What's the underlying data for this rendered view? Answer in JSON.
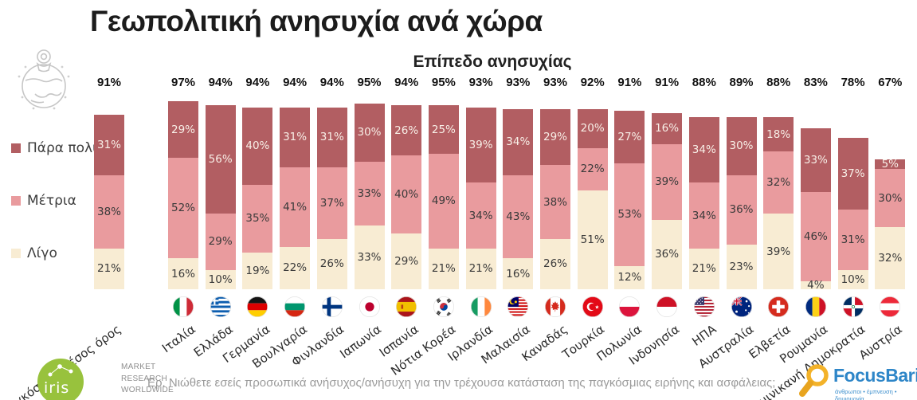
{
  "title": "Γεωπολιτική ανησυχία ανά χώρα",
  "subtitle": "Επίπεδο ανησυχίας",
  "colors": {
    "para_poly": "#b25e62",
    "metria": "#e99b9e",
    "ligo": "#f8ecd3",
    "label_on_dark": "#f8efe7",
    "label_on_light": "#3a3a3a"
  },
  "legend": [
    {
      "label": "Πάρα πολύ",
      "color": "#b25e62"
    },
    {
      "label": "Μέτρια",
      "color": "#e99b9e"
    },
    {
      "label": "Λίγο",
      "color": "#f8ecd3"
    }
  ],
  "chart_data": {
    "type": "bar",
    "stacked": true,
    "unit": "%",
    "series_names": [
      "Πάρα πολύ",
      "Μέτρια",
      "Λίγο"
    ],
    "bars": [
      {
        "country": "Παγκόσμιος μέσος όρος",
        "total": "91%",
        "para_poly": 31,
        "metria": 38,
        "ligo": 21,
        "flag": null
      },
      {
        "country": "Ιταλία",
        "total": "97%",
        "para_poly": 29,
        "metria": 52,
        "ligo": 16,
        "flag": "it"
      },
      {
        "country": "Ελλάδα",
        "total": "94%",
        "para_poly": 56,
        "metria": 29,
        "ligo": 10,
        "flag": "gr"
      },
      {
        "country": "Γερμανία",
        "total": "94%",
        "para_poly": 40,
        "metria": 35,
        "ligo": 19,
        "flag": "de"
      },
      {
        "country": "Βουλγαρία",
        "total": "94%",
        "para_poly": 31,
        "metria": 41,
        "ligo": 22,
        "flag": "bg"
      },
      {
        "country": "Φινλανδία",
        "total": "94%",
        "para_poly": 31,
        "metria": 37,
        "ligo": 26,
        "flag": "fi"
      },
      {
        "country": "Ιαπωνία",
        "total": "95%",
        "para_poly": 30,
        "metria": 33,
        "ligo": 33,
        "flag": "jp"
      },
      {
        "country": "Ισπανία",
        "total": "94%",
        "para_poly": 26,
        "metria": 40,
        "ligo": 29,
        "flag": "es"
      },
      {
        "country": "Νότια Κορέα",
        "total": "95%",
        "para_poly": 25,
        "metria": 49,
        "ligo": 21,
        "flag": "kr"
      },
      {
        "country": "Ιρλανδία",
        "total": "93%",
        "para_poly": 39,
        "metria": 34,
        "ligo": 21,
        "flag": "ie"
      },
      {
        "country": "Μαλαισία",
        "total": "93%",
        "para_poly": 34,
        "metria": 43,
        "ligo": 16,
        "flag": "my"
      },
      {
        "country": "Καναδάς",
        "total": "93%",
        "para_poly": 29,
        "metria": 38,
        "ligo": 26,
        "flag": "ca"
      },
      {
        "country": "Τουρκία",
        "total": "92%",
        "para_poly": 20,
        "metria": 22,
        "ligo": 51,
        "flag": "tr"
      },
      {
        "country": "Πολωνία",
        "total": "91%",
        "para_poly": 27,
        "metria": 53,
        "ligo": 12,
        "flag": "pl"
      },
      {
        "country": "Ινδονησία",
        "total": "91%",
        "para_poly": 16,
        "metria": 39,
        "ligo": 36,
        "flag": "id"
      },
      {
        "country": "ΗΠΑ",
        "total": "88%",
        "para_poly": 34,
        "metria": 34,
        "ligo": 21,
        "flag": "us"
      },
      {
        "country": "Αυστραλία",
        "total": "89%",
        "para_poly": 30,
        "metria": 36,
        "ligo": 23,
        "flag": "au"
      },
      {
        "country": "Ελβετία",
        "total": "88%",
        "para_poly": 18,
        "metria": 32,
        "ligo": 39,
        "flag": "ch"
      },
      {
        "country": "Ρουμανία",
        "total": "83%",
        "para_poly": 33,
        "metria": 46,
        "ligo": 4,
        "flag": "ro"
      },
      {
        "country": "Δομινικανή Δημοκρατία",
        "total": "78%",
        "para_poly": 37,
        "metria": 31,
        "ligo": 10,
        "flag": "do"
      },
      {
        "country": "Αυστρία",
        "total": "67%",
        "para_poly": 5,
        "metria": 30,
        "ligo": 32,
        "flag": "at"
      }
    ]
  },
  "footer": {
    "question": "Ερ. Νιώθετε εσείς προσωπικά ανήσυχος/ανήσυχη για την τρέχουσα κατάσταση της παγκόσμιας ειρήνης και ασφάλειας;"
  },
  "logos": {
    "iris": {
      "name": "iris",
      "tagline": "MARKET\nRESEARCH\nWORLDWIDE"
    },
    "focusbari": {
      "name": "FocusBari",
      "tagline": "άνθρωποι • έμπνευση • δημιουργία"
    }
  }
}
